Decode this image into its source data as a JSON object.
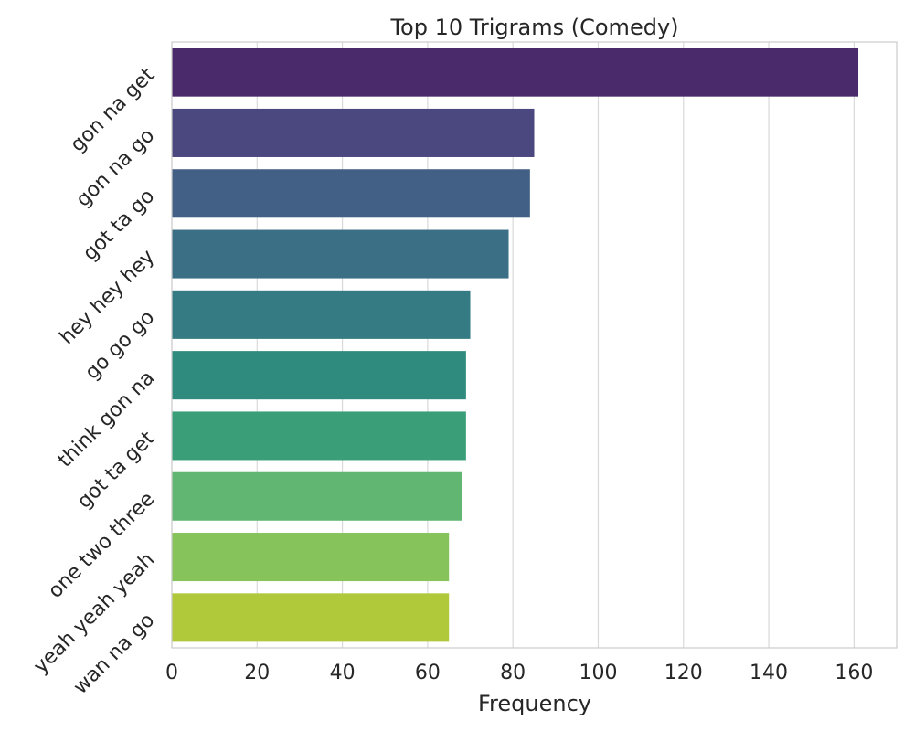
{
  "chart_data": {
    "type": "bar",
    "orientation": "horizontal",
    "title": "Top 10 Trigrams (Comedy)",
    "xlabel": "Frequency",
    "ylabel": "",
    "xlim": [
      0,
      170
    ],
    "xticks": [
      0,
      20,
      40,
      60,
      80,
      100,
      120,
      140,
      160
    ],
    "grid": true,
    "categories": [
      "gon na get",
      "gon na go",
      "got ta go",
      "hey hey hey",
      "go go go",
      "think gon na",
      "got ta get",
      "one two three",
      "yeah yeah yeah",
      "wan na go"
    ],
    "values": [
      161,
      85,
      84,
      79,
      70,
      69,
      69,
      68,
      65,
      65
    ],
    "colors": [
      "#4a2a6b",
      "#4b477f",
      "#425f85",
      "#3b6f86",
      "#347b83",
      "#2f8b7e",
      "#3a9f79",
      "#61b671",
      "#86c35b",
      "#b0c93b"
    ]
  }
}
